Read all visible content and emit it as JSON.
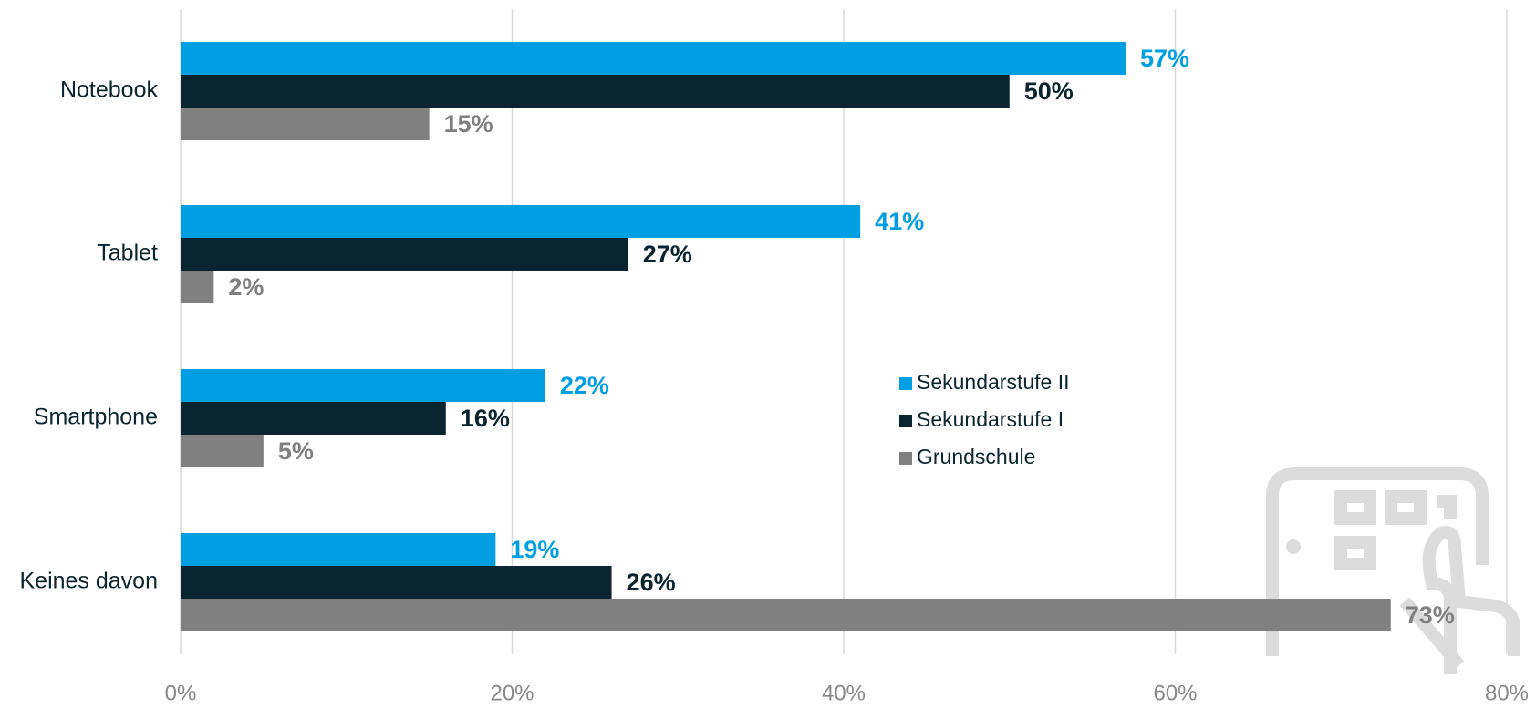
{
  "chart_data": {
    "type": "bar",
    "orientation": "horizontal",
    "categories": [
      "Notebook",
      "Tablet",
      "Smartphone",
      "Keines davon"
    ],
    "series": [
      {
        "name": "Sekundarstufe II",
        "color": "#009fe3",
        "values": [
          57,
          41,
          22,
          19
        ],
        "value_labels": [
          "57%",
          "41%",
          "22%",
          "19%"
        ]
      },
      {
        "name": "Sekundarstufe I",
        "color": "#0b2530",
        "values": [
          50,
          27,
          16,
          26
        ],
        "value_labels": [
          "50%",
          "27%",
          "16%",
          "26%"
        ]
      },
      {
        "name": "Grundschule",
        "color": "#808080",
        "values": [
          15,
          2,
          5,
          73
        ],
        "value_labels": [
          "15%",
          "2%",
          "5%",
          "73%"
        ]
      }
    ],
    "xlim": [
      0,
      80
    ],
    "xticks": [
      {
        "value": 0,
        "label": "0%"
      },
      {
        "value": 20,
        "label": "20%"
      },
      {
        "value": 40,
        "label": "40%"
      },
      {
        "value": 60,
        "label": "60%"
      },
      {
        "value": 80,
        "label": "80%"
      }
    ],
    "grid": true
  }
}
